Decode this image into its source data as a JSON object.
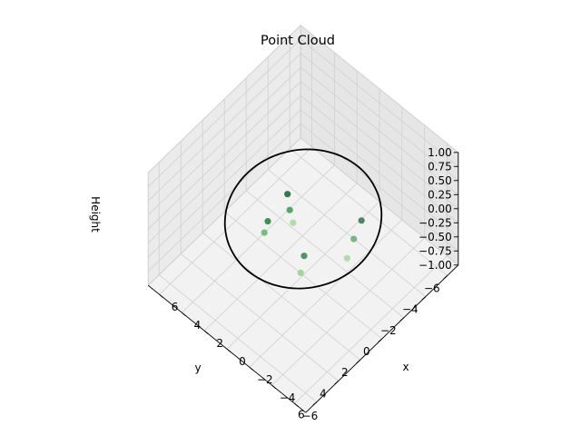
{
  "chart_data": {
    "type": "scatter3d",
    "title": "Point Cloud",
    "xlabel": "x",
    "ylabel": "y",
    "zlabel": "Height",
    "xlim": [
      -7,
      7
    ],
    "ylim": [
      -7,
      7
    ],
    "zlim": [
      -1,
      1
    ],
    "x_ticks": [
      "−6",
      "−4",
      "−2",
      "0",
      "2",
      "4",
      "6"
    ],
    "y_ticks": [
      "−6",
      "−4",
      "−2",
      "0",
      "2",
      "4",
      "6"
    ],
    "z_ticks": [
      "1.00",
      "0.75",
      "0.50",
      "0.25",
      "0.00",
      "−0.25",
      "−0.50",
      "−0.75",
      "−1.00"
    ],
    "grid": true,
    "reference_circle": {
      "radius": 5,
      "z": 0,
      "color": "#000000"
    },
    "colormap": "Greens",
    "points": [
      {
        "x": -4.6,
        "y": -0.6,
        "z": 0.6,
        "color": "#3d7a58"
      },
      {
        "x": -4.3,
        "y": -0.2,
        "z": 0.3,
        "color": "#6ab07c"
      },
      {
        "x": -4.1,
        "y": 0.2,
        "z": 0.0,
        "color": "#a8d9a0"
      },
      {
        "x": -2.6,
        "y": 2.6,
        "z": 0.25,
        "color": "#3d8b55"
      },
      {
        "x": -2.3,
        "y": 2.6,
        "z": -0.1,
        "color": "#98d48f"
      },
      {
        "x": 1.6,
        "y": 1.6,
        "z": 0.0,
        "color": "#248b45"
      },
      {
        "x": 1.9,
        "y": 1.6,
        "z": -0.25,
        "color": "#65bb6e"
      },
      {
        "x": 1.3,
        "y": 0.1,
        "z": 0.25,
        "color": "#1a6e3a"
      },
      {
        "x": 1.1,
        "y": 0.1,
        "z": 0.0,
        "color": "#3ba259"
      },
      {
        "x": 1.0,
        "y": -0.1,
        "z": -0.25,
        "color": "#a6dd9f"
      }
    ]
  }
}
